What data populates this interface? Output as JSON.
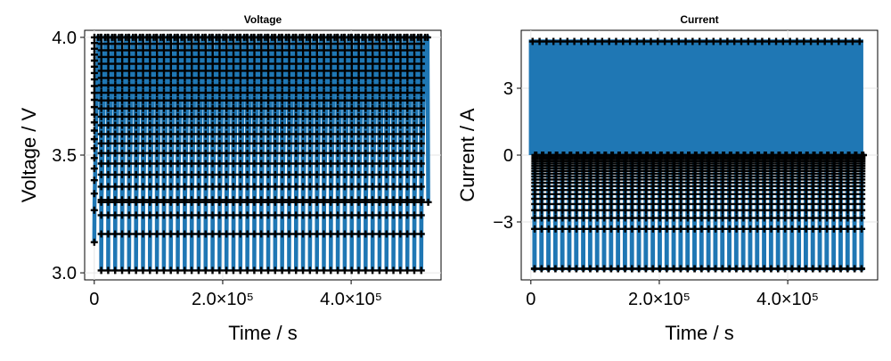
{
  "chart_data": [
    {
      "type": "line",
      "title": "Voltage",
      "xlabel": "Time / s",
      "ylabel": "Voltage / V",
      "xlim": [
        -15000,
        540000
      ],
      "ylim": [
        2.97,
        4.03
      ],
      "x_ticks": [
        0,
        200000,
        400000
      ],
      "x_tick_labels": [
        "0",
        "2.0×10⁵",
        "4.0×10⁵"
      ],
      "y_ticks": [
        3.0,
        3.5,
        4.0
      ],
      "y_tick_labels": [
        "3.0",
        "3.5",
        "4.0"
      ],
      "grid": true,
      "line_color": "#1f77b4",
      "marker_color": "#000000",
      "marker": "plus",
      "series": [
        {
          "cycle_count": 48,
          "t_start": 0,
          "t_end": 520000,
          "v_max": 4.0,
          "v_min_first": 3.13,
          "v_min": 3.01,
          "v_plateau_low": 3.3,
          "cycle_period_s": 10800
        }
      ]
    },
    {
      "type": "line",
      "title": "Current",
      "xlabel": "Time / s",
      "ylabel": "Current / A",
      "xlim": [
        -15000,
        540000
      ],
      "ylim": [
        -5.6,
        5.6
      ],
      "x_ticks": [
        0,
        200000,
        400000
      ],
      "x_tick_labels": [
        "0",
        "2.0×10⁵",
        "4.0×10⁵"
      ],
      "y_ticks": [
        -3,
        0,
        3
      ],
      "y_tick_labels": [
        "−3",
        "0",
        "3"
      ],
      "grid": true,
      "line_color": "#1f77b4",
      "marker_color": "#000000",
      "marker": "plus",
      "series": [
        {
          "cycle_count": 48,
          "t_start": 0,
          "t_end": 520000,
          "i_discharge": 5.1,
          "i_charge": -5.1,
          "i_rest": 0.0,
          "cycle_period_s": 10800
        }
      ]
    }
  ]
}
